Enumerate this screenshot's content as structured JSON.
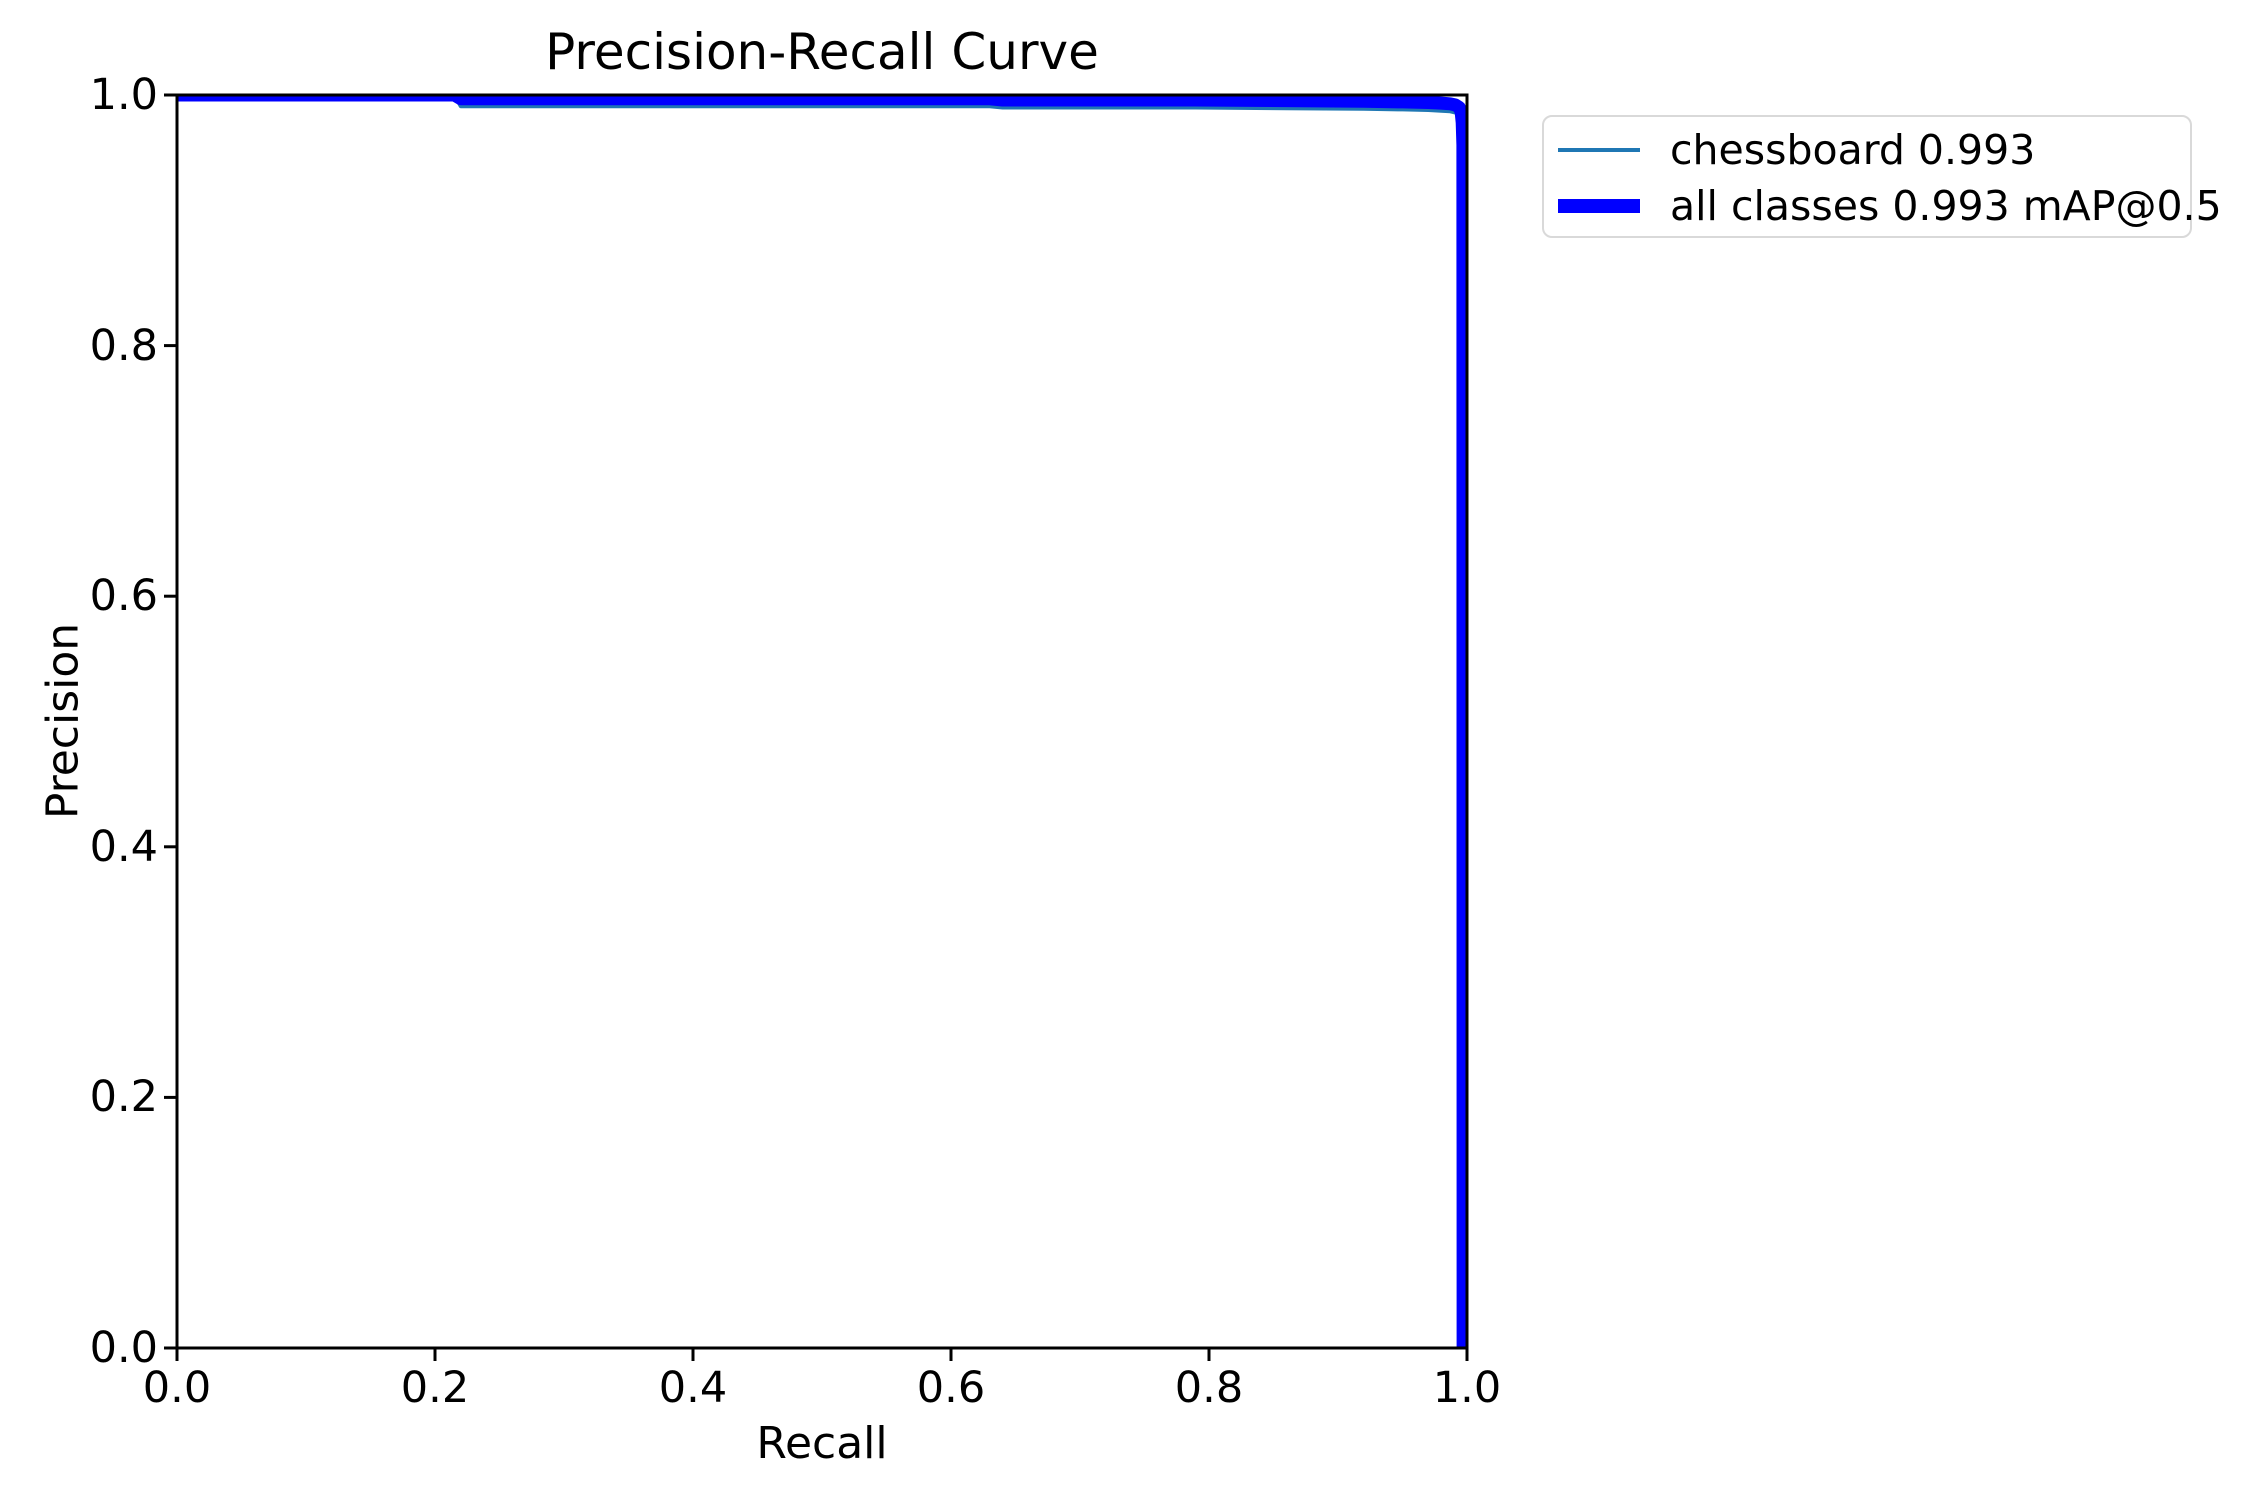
{
  "chart_data": {
    "type": "line",
    "title": "Precision-Recall Curve",
    "xlabel": "Recall",
    "ylabel": "Precision",
    "xlim": [
      0.0,
      1.0
    ],
    "ylim": [
      0.0,
      1.0
    ],
    "x_ticks": [
      0.0,
      0.2,
      0.4,
      0.6,
      0.8,
      1.0
    ],
    "y_ticks": [
      0.0,
      0.2,
      0.4,
      0.6,
      0.8,
      1.0
    ],
    "grid": false,
    "legend_position": "upper right outside axes",
    "axes_color": "#000000",
    "background_color": "#ffffff",
    "series": [
      {
        "name": "chessboard",
        "legend_label": "chessboard 0.993",
        "ap": 0.993,
        "color": "#1f77b4",
        "style": "thin",
        "points": [
          [
            0.0,
            1.0
          ],
          [
            0.215,
            1.0
          ],
          [
            0.22,
            0.991
          ],
          [
            0.63,
            0.991
          ],
          [
            0.64,
            0.99
          ],
          [
            0.79,
            0.99
          ],
          [
            0.86,
            0.9895
          ],
          [
            0.92,
            0.989
          ],
          [
            0.95,
            0.9885
          ],
          [
            0.97,
            0.988
          ],
          [
            0.98,
            0.9875
          ],
          [
            0.987,
            0.987
          ],
          [
            0.991,
            0.986
          ],
          [
            0.994,
            0.984
          ],
          [
            0.9955,
            0.98
          ],
          [
            0.9963,
            0.972
          ],
          [
            0.9968,
            0.954
          ],
          [
            0.998,
            0.0
          ]
        ]
      },
      {
        "name": "all classes",
        "legend_label": "all classes 0.993 mAP@0.5",
        "map_at_0_5": 0.993,
        "color": "#0000ff",
        "style": "thick",
        "points": [
          [
            0.0,
            1.0
          ],
          [
            0.215,
            1.0
          ],
          [
            0.22,
            0.997
          ],
          [
            0.63,
            0.997
          ],
          [
            0.64,
            0.996
          ],
          [
            0.79,
            0.996
          ],
          [
            0.86,
            0.9955
          ],
          [
            0.92,
            0.995
          ],
          [
            0.95,
            0.9945
          ],
          [
            0.97,
            0.994
          ],
          [
            0.98,
            0.9935
          ],
          [
            0.987,
            0.993
          ],
          [
            0.991,
            0.992
          ],
          [
            0.994,
            0.99
          ],
          [
            0.9955,
            0.986
          ],
          [
            0.9963,
            0.978
          ],
          [
            0.9968,
            0.96
          ],
          [
            0.997,
            0.0
          ]
        ]
      }
    ]
  }
}
